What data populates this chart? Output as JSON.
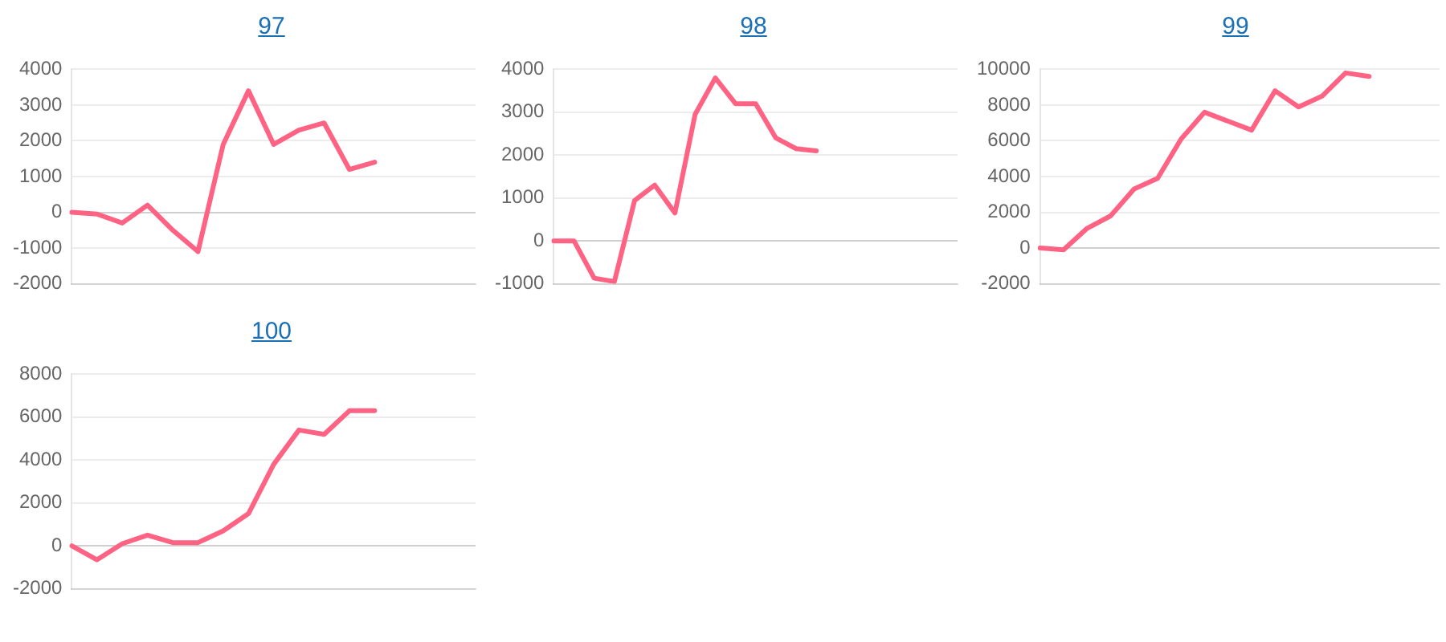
{
  "chart_data": [
    {
      "type": "line",
      "title": "97",
      "categories": [
        null,
        null,
        null,
        null,
        null,
        null,
        null,
        null,
        null,
        null,
        null,
        null,
        null,
        null,
        null,
        null,
        null
      ],
      "series": [
        {
          "color": "#ff6384",
          "values": [
            0,
            -50,
            -300,
            200,
            -500,
            -1100,
            1900,
            3400,
            1900,
            2300,
            2500,
            1200,
            1400,
            null,
            null,
            null,
            null
          ]
        }
      ],
      "ylim": [
        -2000,
        4000
      ],
      "yticks": [
        -2000,
        -1000,
        0,
        1000,
        2000,
        3000,
        4000
      ],
      "grid": "y",
      "tick_labels": "y",
      "marker": "none",
      "line_style": "solid"
    },
    {
      "type": "line",
      "title": "98",
      "categories": [
        null,
        null,
        null,
        null,
        null,
        null,
        null,
        null,
        null,
        null,
        null,
        null,
        null,
        null,
        null,
        null,
        null,
        null,
        null,
        null,
        null
      ],
      "series": [
        {
          "color": "#ff6384",
          "values": [
            0,
            0,
            -870,
            -950,
            940,
            1300,
            650,
            2950,
            3800,
            3200,
            3200,
            2400,
            2150,
            2100,
            null,
            null,
            null,
            null,
            null,
            null,
            null
          ]
        }
      ],
      "ylim": [
        -1000,
        4000
      ],
      "yticks": [
        -1000,
        0,
        1000,
        2000,
        3000,
        4000
      ],
      "grid": "y",
      "tick_labels": "y",
      "marker": "none",
      "line_style": "solid"
    },
    {
      "type": "line",
      "title": "99",
      "categories": [
        null,
        null,
        null,
        null,
        null,
        null,
        null,
        null,
        null,
        null,
        null,
        null,
        null,
        null,
        null,
        null,
        null,
        null
      ],
      "series": [
        {
          "color": "#ff6384",
          "values": [
            0,
            -100,
            1100,
            1800,
            3300,
            3900,
            6100,
            7600,
            7100,
            6600,
            8800,
            7900,
            8500,
            9800,
            9600,
            null,
            null,
            null
          ]
        }
      ],
      "ylim": [
        -2000,
        10000
      ],
      "yticks": [
        -2000,
        0,
        2000,
        4000,
        6000,
        8000,
        10000
      ],
      "grid": "y",
      "tick_labels": "y",
      "marker": "none",
      "line_style": "solid"
    },
    {
      "type": "line",
      "title": "100",
      "categories": [
        null,
        null,
        null,
        null,
        null,
        null,
        null,
        null,
        null,
        null,
        null,
        null,
        null,
        null,
        null,
        null,
        null
      ],
      "series": [
        {
          "color": "#ff6384",
          "values": [
            0,
            -650,
            100,
            500,
            150,
            150,
            700,
            1500,
            3800,
            5400,
            5200,
            6300,
            6300,
            null,
            null,
            null,
            null
          ]
        }
      ],
      "ylim": [
        -2000,
        8000
      ],
      "yticks": [
        -2000,
        0,
        2000,
        4000,
        6000,
        8000
      ],
      "grid": "y",
      "tick_labels": "y",
      "marker": "none",
      "line_style": "solid"
    }
  ]
}
